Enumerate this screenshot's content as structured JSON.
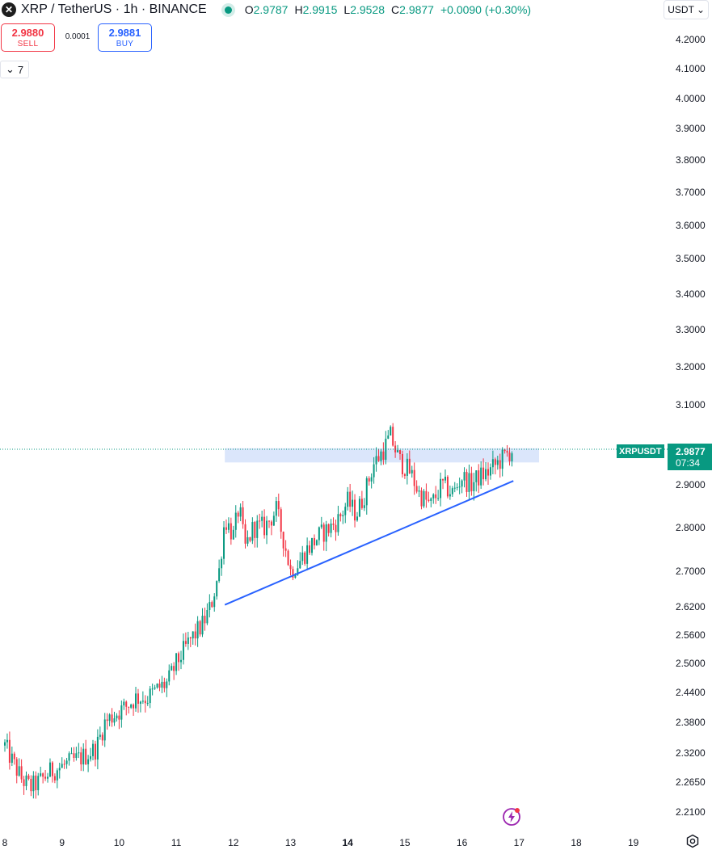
{
  "header": {
    "symbol_title": "XRP / TetherUS · 1h · BINANCE",
    "ohlc": [
      {
        "key": "O",
        "value": "2.9787"
      },
      {
        "key": "H",
        "value": "2.9915"
      },
      {
        "key": "L",
        "value": "2.9528"
      },
      {
        "key": "C",
        "value": "2.9877"
      }
    ],
    "change": "+0.0090 (+0.30%)",
    "currency": "USDT",
    "currency_caret": "⌄"
  },
  "trade": {
    "sell_price": "2.9880",
    "sell_label": "SELL",
    "spread": "0.0001",
    "buy_price": "2.9881",
    "buy_label": "BUY"
  },
  "indicators": {
    "toggle_caret": "⌄",
    "count": "7"
  },
  "price_axis": [
    "4.2000",
    "4.1000",
    "4.0000",
    "3.9000",
    "3.8000",
    "3.7000",
    "3.6000",
    "3.5000",
    "3.4000",
    "3.3000",
    "3.2000",
    "3.1000",
    "2.9000",
    "2.8000",
    "2.7000",
    "2.6200",
    "2.5600",
    "2.5000",
    "2.4400",
    "2.3800",
    "2.3200",
    "2.2650",
    "2.2100"
  ],
  "time_axis": [
    {
      "label": "8",
      "bold": false
    },
    {
      "label": "9",
      "bold": false
    },
    {
      "label": "10",
      "bold": false
    },
    {
      "label": "11",
      "bold": false
    },
    {
      "label": "12",
      "bold": false
    },
    {
      "label": "13",
      "bold": false
    },
    {
      "label": "14",
      "bold": true
    },
    {
      "label": "15",
      "bold": false
    },
    {
      "label": "16",
      "bold": false
    },
    {
      "label": "17",
      "bold": false
    },
    {
      "label": "18",
      "bold": false
    },
    {
      "label": "19",
      "bold": false
    }
  ],
  "last_price": {
    "symbol": "XRPUSDT",
    "price": "2.9877",
    "countdown": "07:34"
  },
  "colors": {
    "up": "#089981",
    "down": "#f23645",
    "trendline": "#2962ff",
    "zone": "#dbe6fb"
  },
  "chart_data": {
    "type": "candlestick",
    "instrument": "XRPUSDT",
    "interval": "1h",
    "ohlc_points": [
      {
        "day": 8.0,
        "close": 2.335
      },
      {
        "day": 8.15,
        "close": 2.3
      },
      {
        "day": 8.3,
        "close": 2.27
      },
      {
        "day": 8.45,
        "close": 2.255
      },
      {
        "day": 8.6,
        "close": 2.265
      },
      {
        "day": 8.8,
        "close": 2.285
      },
      {
        "day": 9.0,
        "close": 2.295
      },
      {
        "day": 9.2,
        "close": 2.305
      },
      {
        "day": 9.4,
        "close": 2.315
      },
      {
        "day": 9.6,
        "close": 2.33
      },
      {
        "day": 9.75,
        "close": 2.38
      },
      {
        "day": 9.9,
        "close": 2.395
      },
      {
        "day": 10.1,
        "close": 2.41
      },
      {
        "day": 10.3,
        "close": 2.43
      },
      {
        "day": 10.5,
        "close": 2.43
      },
      {
        "day": 10.7,
        "close": 2.45
      },
      {
        "day": 10.85,
        "close": 2.46
      },
      {
        "day": 11.0,
        "close": 2.5
      },
      {
        "day": 11.25,
        "close": 2.55
      },
      {
        "day": 11.45,
        "close": 2.58
      },
      {
        "day": 11.6,
        "close": 2.62
      },
      {
        "day": 11.75,
        "close": 2.7
      },
      {
        "day": 11.85,
        "close": 2.82
      },
      {
        "day": 12.0,
        "close": 2.78
      },
      {
        "day": 12.1,
        "close": 2.85
      },
      {
        "day": 12.2,
        "close": 2.75
      },
      {
        "day": 12.35,
        "close": 2.8
      },
      {
        "day": 12.55,
        "close": 2.8
      },
      {
        "day": 12.75,
        "close": 2.84
      },
      {
        "day": 12.9,
        "close": 2.76
      },
      {
        "day": 13.0,
        "close": 2.7
      },
      {
        "day": 13.15,
        "close": 2.72
      },
      {
        "day": 13.3,
        "close": 2.75
      },
      {
        "day": 13.5,
        "close": 2.78
      },
      {
        "day": 13.7,
        "close": 2.8
      },
      {
        "day": 13.85,
        "close": 2.82
      },
      {
        "day": 14.0,
        "close": 2.86
      },
      {
        "day": 14.15,
        "close": 2.83
      },
      {
        "day": 14.3,
        "close": 2.88
      },
      {
        "day": 14.45,
        "close": 2.95
      },
      {
        "day": 14.6,
        "close": 2.98
      },
      {
        "day": 14.75,
        "close": 3.02
      },
      {
        "day": 14.9,
        "close": 2.96
      },
      {
        "day": 15.1,
        "close": 2.93
      },
      {
        "day": 15.25,
        "close": 2.88
      },
      {
        "day": 15.45,
        "close": 2.85
      },
      {
        "day": 15.65,
        "close": 2.9
      },
      {
        "day": 15.85,
        "close": 2.88
      },
      {
        "day": 16.0,
        "close": 2.92
      },
      {
        "day": 16.15,
        "close": 2.9
      },
      {
        "day": 16.3,
        "close": 2.92
      },
      {
        "day": 16.45,
        "close": 2.93
      },
      {
        "day": 16.6,
        "close": 2.95
      },
      {
        "day": 16.75,
        "close": 2.97
      },
      {
        "day": 16.9,
        "close": 2.9877
      }
    ],
    "support_trendline": {
      "from": {
        "day": 11.85,
        "price": 2.625
      },
      "to": {
        "day": 16.9,
        "price": 2.91
      }
    },
    "resistance_zone": {
      "from_day": 11.85,
      "to_day": 17.35,
      "low": 2.955,
      "high": 2.99
    },
    "y_scale": "log",
    "y_range": [
      2.18,
      4.26
    ],
    "x_range": [
      7.95,
      20.0
    ]
  }
}
